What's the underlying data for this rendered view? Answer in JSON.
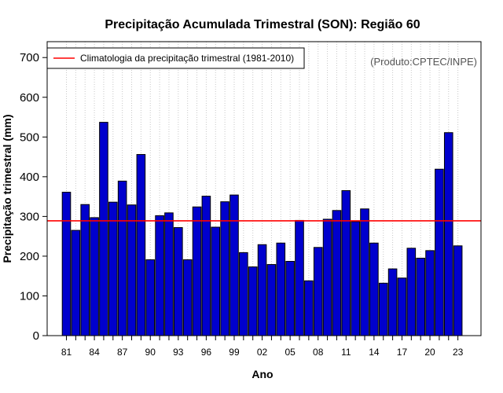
{
  "chart_data": {
    "type": "bar",
    "title": "Precipitação Acumulada Trimestral (SON): Região 60",
    "xlabel": "Ano",
    "ylabel": "Precipitação trimestral (mm)",
    "ylim": [
      0,
      740
    ],
    "yticks": [
      0,
      100,
      200,
      300,
      400,
      500,
      600,
      700
    ],
    "grid": "vertical dotted",
    "years": [
      1981,
      1982,
      1983,
      1984,
      1985,
      1986,
      1987,
      1988,
      1989,
      1990,
      1991,
      1992,
      1993,
      1994,
      1995,
      1996,
      1997,
      1998,
      1999,
      2000,
      2001,
      2002,
      2003,
      2004,
      2005,
      2006,
      2007,
      2008,
      2009,
      2010,
      2011,
      2012,
      2013,
      2014,
      2015,
      2016,
      2017,
      2018,
      2019,
      2020,
      2021,
      2022,
      2023
    ],
    "categories": [
      "81",
      "82",
      "83",
      "84",
      "85",
      "86",
      "87",
      "88",
      "89",
      "90",
      "91",
      "92",
      "93",
      "94",
      "95",
      "96",
      "97",
      "98",
      "99",
      "00",
      "01",
      "02",
      "03",
      "04",
      "05",
      "06",
      "07",
      "08",
      "09",
      "10",
      "11",
      "12",
      "13",
      "14",
      "15",
      "16",
      "17",
      "18",
      "19",
      "20",
      "21",
      "22",
      "23"
    ],
    "xtick_labels": [
      "81",
      "84",
      "87",
      "90",
      "93",
      "96",
      "99",
      "02",
      "05",
      "08",
      "11",
      "14",
      "17",
      "20",
      "23"
    ],
    "values": [
      361,
      265,
      330,
      297,
      537,
      336,
      389,
      329,
      456,
      191,
      302,
      309,
      272,
      191,
      324,
      351,
      273,
      337,
      354,
      209,
      173,
      229,
      179,
      233,
      187,
      290,
      138,
      222,
      293,
      315,
      365,
      287,
      319,
      233,
      132,
      168,
      145,
      220,
      195,
      214,
      419,
      511,
      226
    ],
    "climatology": {
      "label": "Climatologia da precipitação trimestral (1981-2010)",
      "value": 289
    },
    "legend_position": "top-left",
    "source_note": "(Produto:CPTEC/INPE)",
    "colors": {
      "bar_fill": "#0000cd",
      "bar_stroke": "#000000",
      "climatology_line": "#ff0000",
      "grid": "#c8c8c8"
    }
  }
}
